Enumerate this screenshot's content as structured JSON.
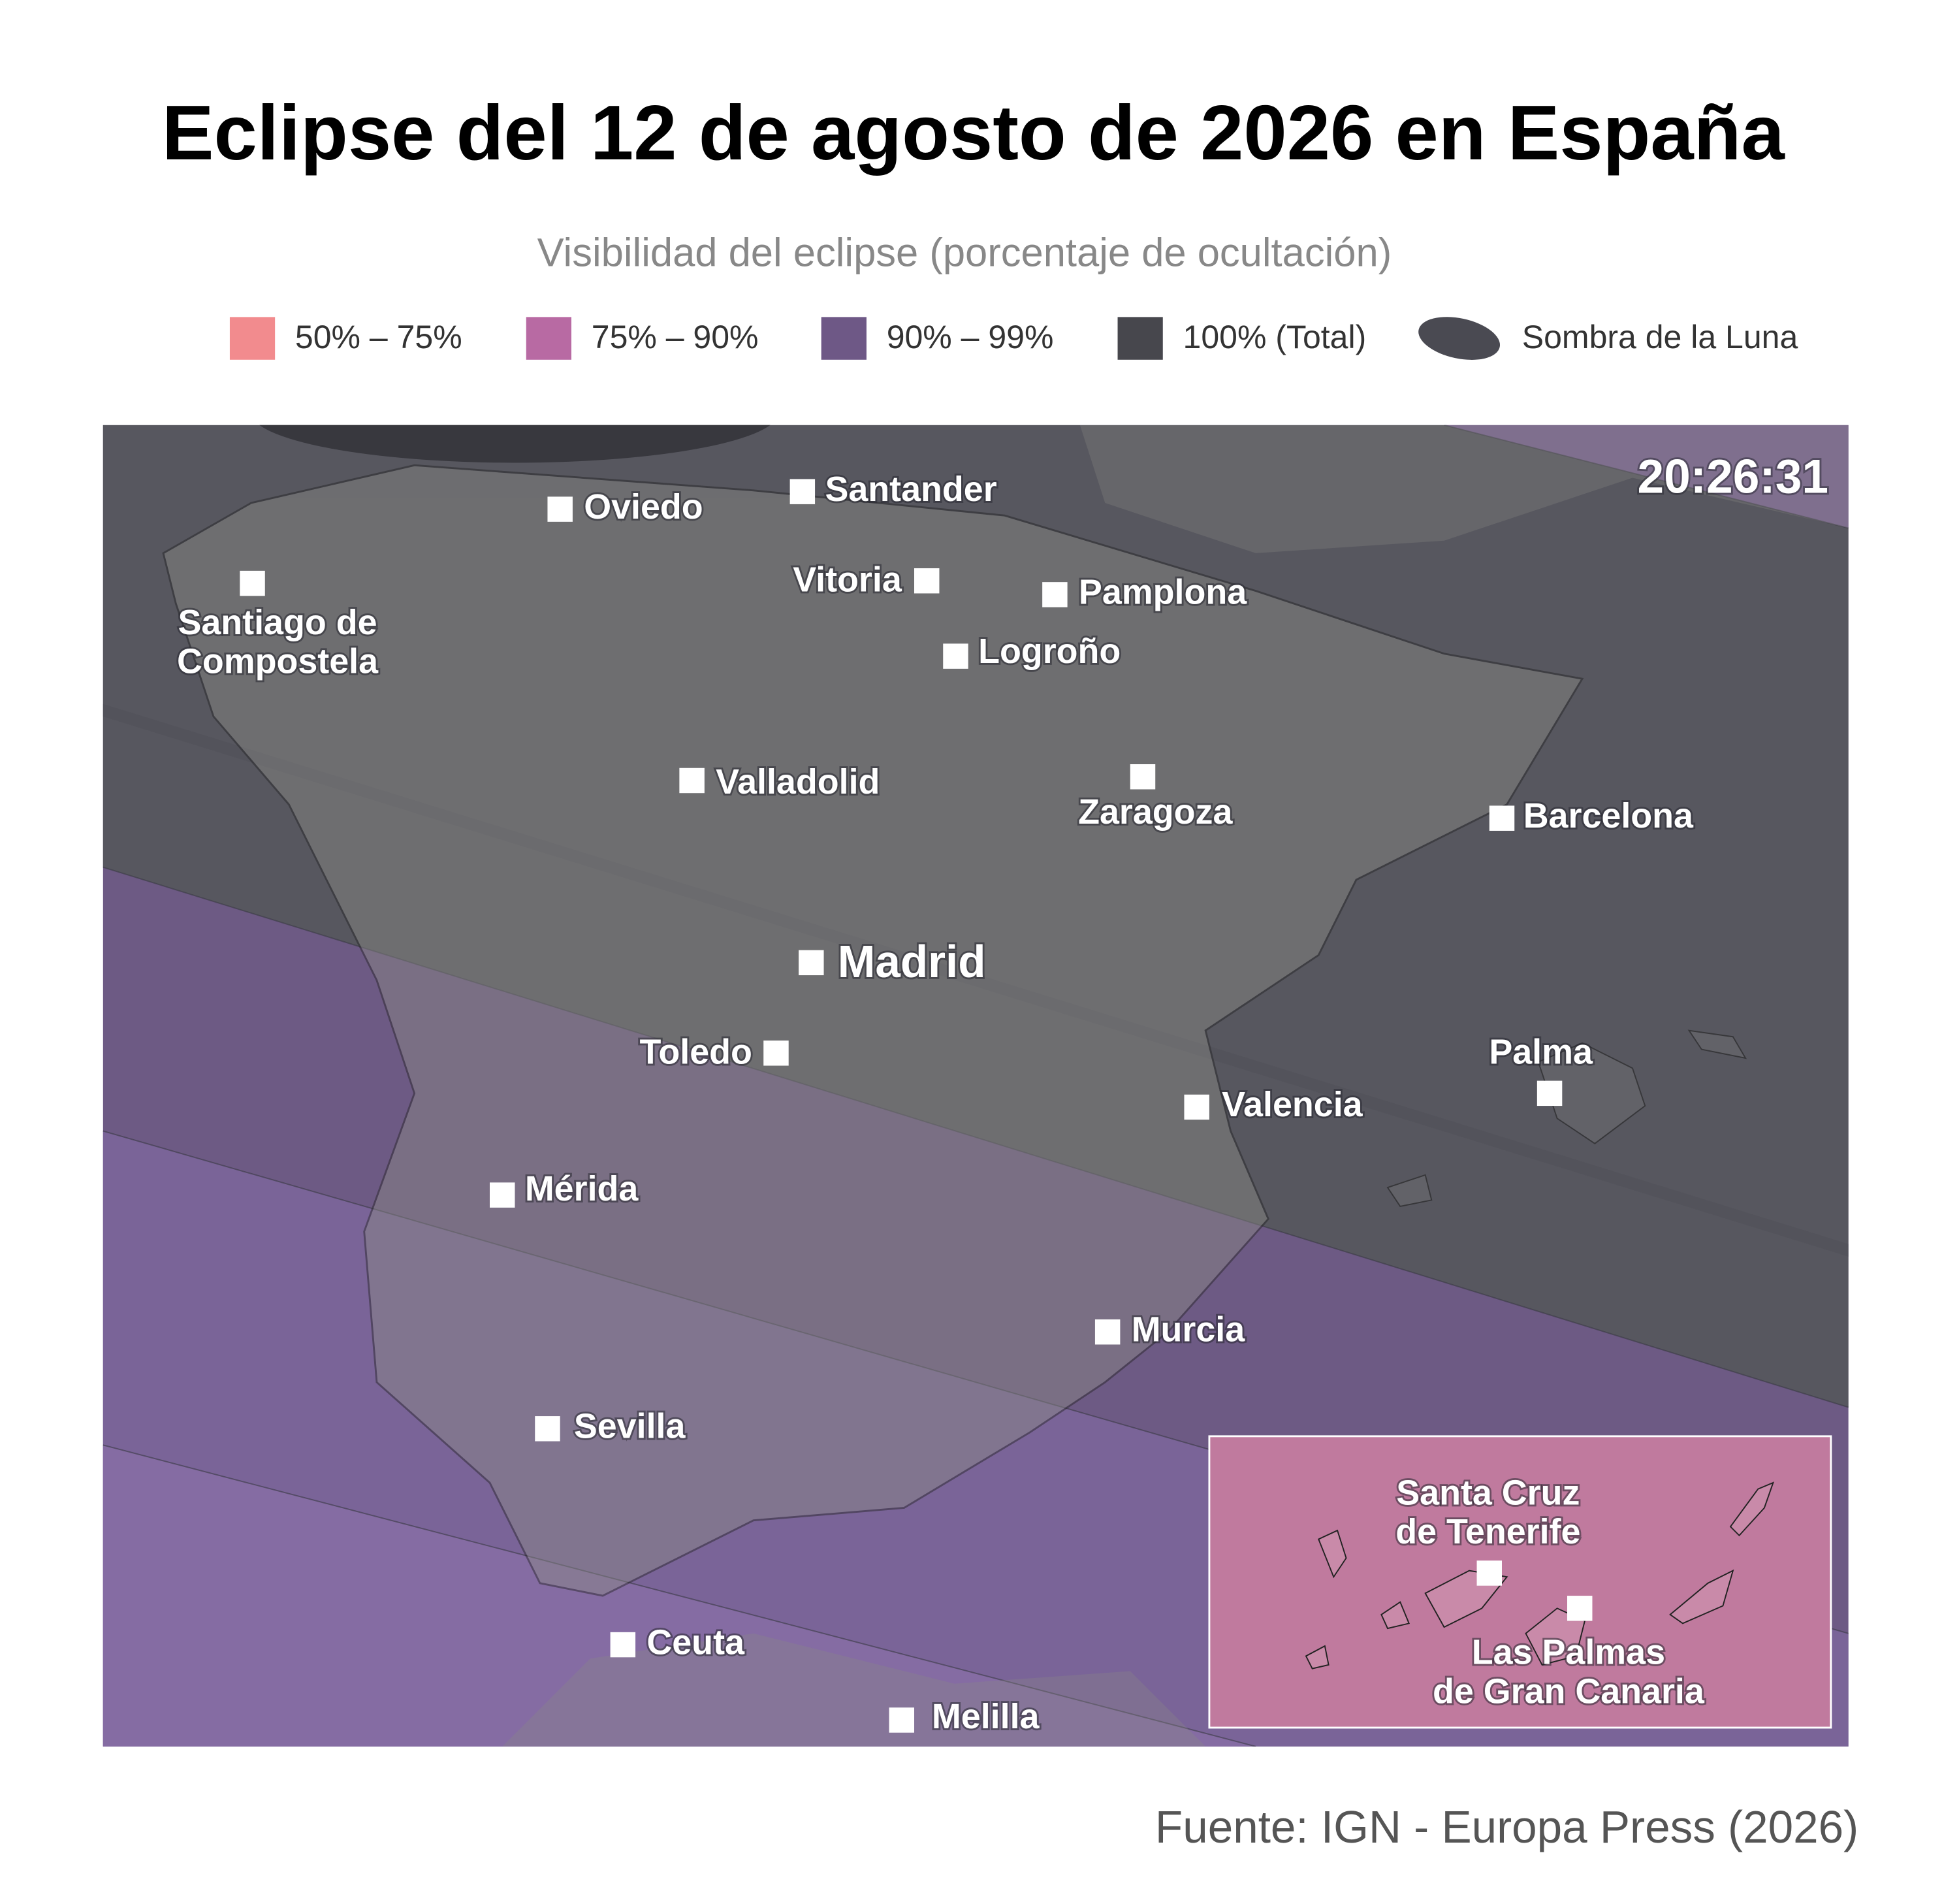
{
  "title": "Eclipse del 12 de agosto de 2026 en España",
  "subtitle": "Visibilidad del eclipse (porcentaje de ocultación)",
  "legend": [
    {
      "label": "50% – 75%",
      "color": "#f28b8e"
    },
    {
      "label": "75% – 90%",
      "color": "#b86aa3"
    },
    {
      "label": "90% – 99%",
      "color": "#6e5886"
    },
    {
      "label": "100% (Total)",
      "color": "#47474d"
    },
    {
      "label": "Sombra de la Luna",
      "color": "#4a4a52"
    }
  ],
  "time": "20:26:31",
  "cities": [
    {
      "label": [
        "Oviedo"
      ]
    },
    {
      "label": [
        "Santander"
      ]
    },
    {
      "label": [
        "Santiago de",
        "Compostela"
      ]
    },
    {
      "label": [
        "Vitoria"
      ]
    },
    {
      "label": [
        "Pamplona"
      ]
    },
    {
      "label": [
        "Logroño"
      ]
    },
    {
      "label": [
        "Valladolid"
      ]
    },
    {
      "label": [
        "Zaragoza"
      ]
    },
    {
      "label": [
        "Barcelona"
      ]
    },
    {
      "label": [
        "Madrid"
      ]
    },
    {
      "label": [
        "Toledo"
      ]
    },
    {
      "label": [
        "Valencia"
      ]
    },
    {
      "label": [
        "Palma"
      ]
    },
    {
      "label": [
        "Mérida"
      ]
    },
    {
      "label": [
        "Murcia"
      ]
    },
    {
      "label": [
        "Sevilla"
      ]
    },
    {
      "label": [
        "Ceuta"
      ]
    },
    {
      "label": [
        "Melilla"
      ]
    },
    {
      "label": [
        "Santa Cruz",
        "de Tenerife"
      ]
    },
    {
      "label": [
        "Las Palmas",
        "de Gran Canaria"
      ]
    }
  ],
  "source": "Fuente: IGN - Europa Press (2026)"
}
